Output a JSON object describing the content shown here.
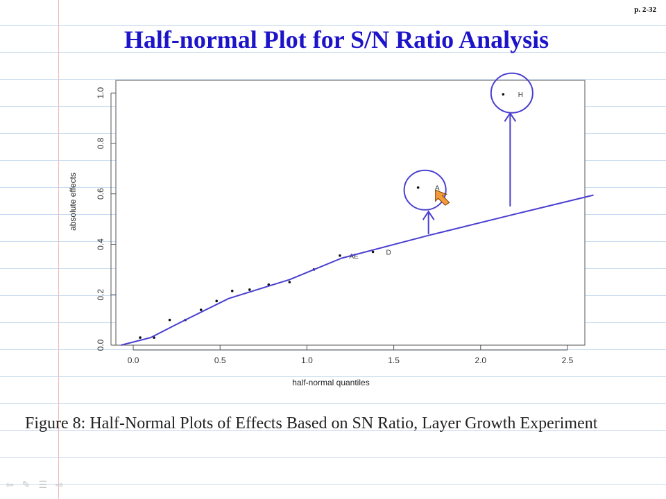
{
  "page": {
    "page_number": "p. 2-32",
    "title": "Half-normal Plot for S/N Ratio Analysis",
    "caption": "Figure 8: Half-Normal Plots of Effects Based on SN Ratio, Layer Growth Experiment"
  },
  "chart_data": {
    "type": "scatter",
    "title": "",
    "xlabel": "half-normal quantiles",
    "ylabel": "absolute effects",
    "xlim": [
      -0.1,
      2.6
    ],
    "ylim": [
      0.0,
      1.05
    ],
    "x_ticks": [
      "0.0",
      "0.5",
      "1.0",
      "1.5",
      "2.0",
      "2.5"
    ],
    "y_ticks": [
      "0.0",
      "0.2",
      "0.4",
      "0.6",
      "0.8",
      "1.0"
    ],
    "grid": false,
    "points": [
      {
        "x": 0.04,
        "y": 0.03,
        "label": ""
      },
      {
        "x": 0.12,
        "y": 0.03,
        "label": ""
      },
      {
        "x": 0.21,
        "y": 0.1,
        "label": ""
      },
      {
        "x": 0.3,
        "y": 0.1,
        "label": ""
      },
      {
        "x": 0.39,
        "y": 0.14,
        "label": ""
      },
      {
        "x": 0.48,
        "y": 0.175,
        "label": ""
      },
      {
        "x": 0.57,
        "y": 0.215,
        "label": ""
      },
      {
        "x": 0.67,
        "y": 0.22,
        "label": ""
      },
      {
        "x": 0.78,
        "y": 0.24,
        "label": ""
      },
      {
        "x": 0.9,
        "y": 0.25,
        "label": ""
      },
      {
        "x": 1.04,
        "y": 0.3,
        "label": ""
      },
      {
        "x": 1.19,
        "y": 0.355,
        "label": ""
      },
      {
        "x": 1.27,
        "y": 0.355,
        "label": "AE"
      },
      {
        "x": 1.38,
        "y": 0.37,
        "label": ""
      },
      {
        "x": 1.47,
        "y": 0.37,
        "label": "D"
      },
      {
        "x": 1.64,
        "y": 0.625,
        "label": ""
      },
      {
        "x": 1.75,
        "y": 0.625,
        "label": "A"
      },
      {
        "x": 2.13,
        "y": 0.995,
        "label": ""
      },
      {
        "x": 2.23,
        "y": 0.995,
        "label": "H"
      }
    ],
    "annotation": {
      "color": "#4a3fd0",
      "trend_line": [
        {
          "x": -0.07,
          "y": 0.0
        },
        {
          "x": 0.1,
          "y": 0.03
        },
        {
          "x": 0.3,
          "y": 0.1
        },
        {
          "x": 0.55,
          "y": 0.185
        },
        {
          "x": 0.9,
          "y": 0.26
        },
        {
          "x": 1.2,
          "y": 0.345
        },
        {
          "x": 1.7,
          "y": 0.435
        },
        {
          "x": 2.2,
          "y": 0.52
        },
        {
          "x": 2.65,
          "y": 0.595
        }
      ],
      "circles": [
        {
          "cx": 1.68,
          "cy": 0.615,
          "r": 0.12
        },
        {
          "cx": 2.18,
          "cy": 1.0,
          "r": 0.12
        }
      ],
      "arrows": [
        {
          "x": 1.7,
          "from_y": 0.44,
          "to_y": 0.53
        },
        {
          "x": 2.17,
          "from_y": 0.55,
          "to_y": 0.92
        }
      ]
    }
  },
  "toolbar": {
    "icons": [
      "arrow-left-icon",
      "pen-icon",
      "menu-icon",
      "arrow-right-icon"
    ],
    "glyphs": [
      "⇦",
      "✎",
      "☰",
      "⇨"
    ]
  }
}
